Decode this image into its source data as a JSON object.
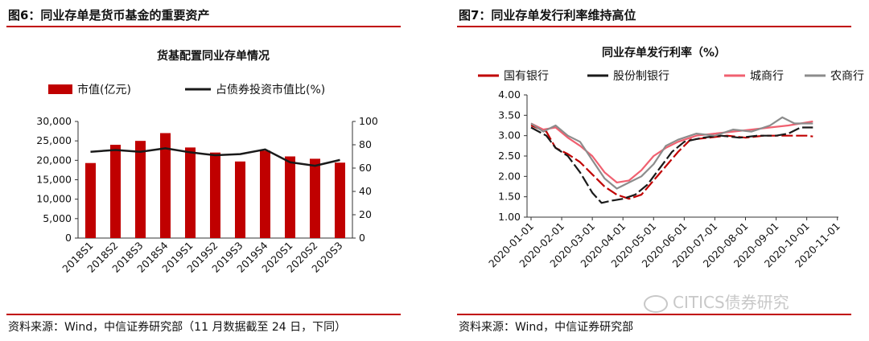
{
  "left": {
    "figure_title": "图6：同业存单是货币基金的重要资产",
    "source": "资料来源：Wind，中信证券研究部（11 月数据截至 24 日，下同）"
  },
  "right": {
    "figure_title": "图7：同业存单发行利率维持高位",
    "source": "资料来源：Wind，中信证券研究部"
  },
  "watermark": "CITICS债券研究",
  "colors": {
    "red": "#c00000",
    "black": "#1a1a1a",
    "pink": "#f06070",
    "gray": "#8c8c8c"
  },
  "chart_data": [
    {
      "type": "bar",
      "title": "货基配置同业存单情况",
      "categories": [
        "2018S1",
        "2018S2",
        "2018S3",
        "2018S4",
        "2019S1",
        "2019S2",
        "2019S3",
        "2019S4",
        "2020S1",
        "2020S2",
        "2020S3"
      ],
      "series": [
        {
          "name": "市值(亿元)",
          "type": "bar",
          "axis": "left",
          "values": [
            19300,
            24000,
            25000,
            27000,
            23300,
            22000,
            19700,
            22500,
            21000,
            20400,
            19400
          ]
        },
        {
          "name": "占债券投资市值比(%)",
          "type": "line",
          "axis": "right",
          "values": [
            74,
            75.5,
            74,
            77,
            73.5,
            71,
            72,
            76,
            65,
            62,
            67
          ]
        }
      ],
      "yleft": {
        "min": 0,
        "max": 30000,
        "ticks": [
          "0",
          "5,000",
          "10,000",
          "15,000",
          "20,000",
          "25,000",
          "30,000"
        ]
      },
      "yright": {
        "min": 0,
        "max": 100,
        "ticks": [
          "0",
          "20",
          "40",
          "60",
          "80",
          "100"
        ]
      },
      "legend_position": "top"
    },
    {
      "type": "line",
      "title": "同业存单发行利率（%）",
      "x_ticks": [
        "2020-01-01",
        "2020-02-01",
        "2020-03-01",
        "2020-04-01",
        "2020-05-01",
        "2020-06-01",
        "2020-07-01",
        "2020-08-01",
        "2020-09-01",
        "2020-10-01",
        "2020-11-01"
      ],
      "ylim": [
        1.0,
        4.0
      ],
      "y_ticks": [
        "1.00",
        "1.50",
        "2.00",
        "2.50",
        "3.00",
        "3.50",
        "4.00"
      ],
      "legend_position": "top",
      "series": [
        {
          "name": "国有银行",
          "color": "#c00000",
          "dashed": true,
          "points": [
            [
              0,
              3.25
            ],
            [
              0.5,
              3.1
            ],
            [
              0.8,
              2.7
            ],
            [
              1.2,
              2.55
            ],
            [
              1.6,
              2.35
            ],
            [
              2.0,
              2.05
            ],
            [
              2.4,
              1.75
            ],
            [
              2.8,
              1.55
            ],
            [
              3.2,
              1.45
            ],
            [
              3.6,
              1.55
            ],
            [
              4.0,
              1.9
            ],
            [
              4.4,
              2.25
            ],
            [
              4.8,
              2.6
            ],
            [
              5.2,
              2.9
            ],
            [
              5.8,
              2.95
            ],
            [
              6.4,
              3.0
            ],
            [
              7.0,
              2.95
            ],
            [
              7.6,
              3.0
            ],
            [
              8.2,
              3.0
            ],
            [
              8.6,
              3.0
            ],
            [
              9.0,
              3.0
            ],
            [
              9.2,
              2.98
            ]
          ]
        },
        {
          "name": "股份制银行",
          "color": "#1a1a1a",
          "dashed": true,
          "points": [
            [
              0,
              3.2
            ],
            [
              0.5,
              3.0
            ],
            [
              0.8,
              2.7
            ],
            [
              1.2,
              2.5
            ],
            [
              1.6,
              2.1
            ],
            [
              2.0,
              1.6
            ],
            [
              2.3,
              1.35
            ],
            [
              2.6,
              1.4
            ],
            [
              3.0,
              1.45
            ],
            [
              3.4,
              1.55
            ],
            [
              3.8,
              1.8
            ],
            [
              4.2,
              2.2
            ],
            [
              4.6,
              2.6
            ],
            [
              5.0,
              2.85
            ],
            [
              5.6,
              2.95
            ],
            [
              6.2,
              3.0
            ],
            [
              6.8,
              2.95
            ],
            [
              7.4,
              3.0
            ],
            [
              8.0,
              3.0
            ],
            [
              8.4,
              3.05
            ],
            [
              8.8,
              3.2
            ],
            [
              9.2,
              3.2
            ]
          ]
        },
        {
          "name": "城商行",
          "color": "#f06070",
          "dashed": false,
          "points": [
            [
              0,
              3.3
            ],
            [
              0.4,
              3.15
            ],
            [
              0.8,
              3.2
            ],
            [
              1.2,
              2.95
            ],
            [
              1.6,
              2.75
            ],
            [
              2.0,
              2.5
            ],
            [
              2.4,
              2.1
            ],
            [
              2.8,
              1.85
            ],
            [
              3.2,
              1.9
            ],
            [
              3.6,
              2.15
            ],
            [
              4.0,
              2.5
            ],
            [
              4.4,
              2.7
            ],
            [
              4.8,
              2.85
            ],
            [
              5.4,
              3.0
            ],
            [
              6.0,
              3.05
            ],
            [
              6.6,
              3.1
            ],
            [
              7.2,
              3.15
            ],
            [
              7.8,
              3.2
            ],
            [
              8.4,
              3.25
            ],
            [
              8.8,
              3.3
            ],
            [
              9.2,
              3.35
            ]
          ]
        },
        {
          "name": "农商行",
          "color": "#8c8c8c",
          "dashed": false,
          "points": [
            [
              0,
              3.3
            ],
            [
              0.4,
              3.1
            ],
            [
              0.8,
              3.25
            ],
            [
              1.2,
              3.0
            ],
            [
              1.6,
              2.85
            ],
            [
              2.0,
              2.4
            ],
            [
              2.4,
              1.95
            ],
            [
              2.8,
              1.7
            ],
            [
              3.2,
              1.85
            ],
            [
              3.6,
              2.0
            ],
            [
              4.0,
              2.3
            ],
            [
              4.4,
              2.75
            ],
            [
              4.8,
              2.9
            ],
            [
              5.4,
              3.05
            ],
            [
              6.0,
              3.0
            ],
            [
              6.6,
              3.15
            ],
            [
              7.2,
              3.1
            ],
            [
              7.8,
              3.25
            ],
            [
              8.2,
              3.45
            ],
            [
              8.6,
              3.3
            ],
            [
              9.2,
              3.3
            ]
          ]
        }
      ]
    }
  ]
}
